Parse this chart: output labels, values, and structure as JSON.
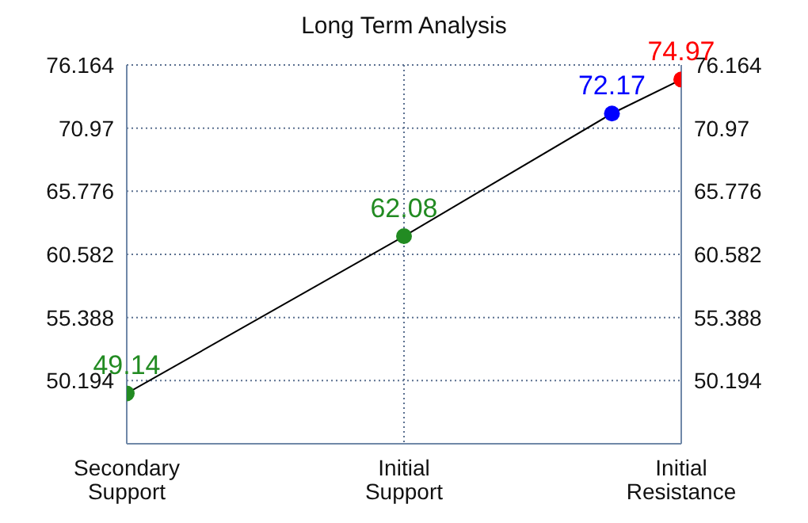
{
  "chart_data": {
    "type": "line",
    "title": "Long Term Analysis",
    "categories": [
      "Secondary Support",
      null,
      null,
      null,
      "Initial Support",
      null,
      null,
      null,
      "Initial Resistance"
    ],
    "ylim": [
      45.0,
      76.164
    ],
    "yticks": [
      50.194,
      55.388,
      60.582,
      65.776,
      70.97,
      76.164
    ],
    "y2lim": [
      45.0,
      76.164
    ],
    "y2ticks": [
      50.194,
      55.388,
      60.582,
      65.776,
      70.97,
      76.164
    ],
    "series": [
      {
        "color": "#000000",
        "colors": [
          "#228b22",
          null,
          null,
          null,
          "#228b22",
          null,
          null,
          "#0000ff",
          "#ff0000"
        ],
        "values": [
          49.14,
          null,
          null,
          null,
          62.08,
          null,
          null,
          72.17,
          74.97
        ]
      }
    ],
    "data_labels": true,
    "marker": "circle",
    "line_style": "solid",
    "grid": true,
    "legend": false
  }
}
